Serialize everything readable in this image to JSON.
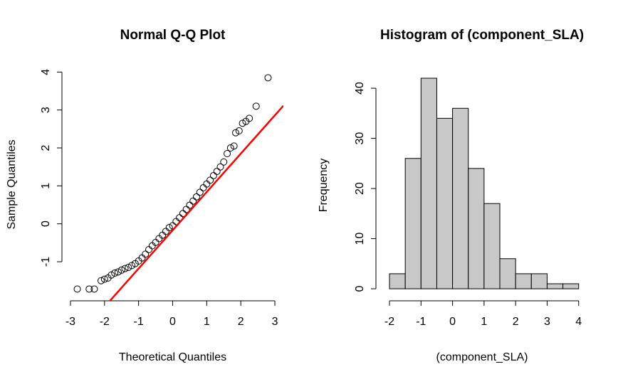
{
  "chart_data": [
    {
      "type": "scatter",
      "title": "Normal Q-Q Plot",
      "x_label": "Theoretical Quantiles",
      "y_label": "Sample Quantiles",
      "x": [
        -2.8,
        -2.45,
        -2.3,
        -2.1,
        -2.0,
        -1.9,
        -1.8,
        -1.7,
        -1.6,
        -1.5,
        -1.4,
        -1.3,
        -1.2,
        -1.1,
        -1.0,
        -0.9,
        -0.8,
        -0.7,
        -0.6,
        -0.5,
        -0.4,
        -0.3,
        -0.2,
        -0.1,
        0,
        0.1,
        0.2,
        0.3,
        0.4,
        0.5,
        0.6,
        0.7,
        0.8,
        0.9,
        1.0,
        1.1,
        1.2,
        1.3,
        1.4,
        1.5,
        1.6,
        1.7,
        1.8,
        1.85,
        1.95,
        2.05,
        2.15,
        2.25,
        2.45,
        2.8
      ],
      "y": [
        -1.72,
        -1.72,
        -1.72,
        -1.5,
        -1.46,
        -1.43,
        -1.35,
        -1.3,
        -1.27,
        -1.22,
        -1.18,
        -1.15,
        -1.1,
        -1.05,
        -0.98,
        -0.9,
        -0.8,
        -0.68,
        -0.58,
        -0.49,
        -0.39,
        -0.3,
        -0.2,
        -0.1,
        -0.05,
        0.06,
        0.16,
        0.27,
        0.38,
        0.49,
        0.6,
        0.71,
        0.83,
        0.95,
        1.05,
        1.15,
        1.27,
        1.38,
        1.5,
        1.63,
        1.85,
        2.0,
        2.05,
        2.4,
        2.45,
        2.65,
        2.7,
        2.78,
        3.1,
        3.85
      ],
      "point_color": "#000000",
      "line": {
        "intercept": -0.17,
        "slope": 1.01,
        "color": "#ff0000"
      },
      "xlim": [
        -3.25,
        3.25
      ],
      "ylim": [
        -2.03,
        4.1
      ],
      "xticks": [
        -3,
        -2,
        -1,
        0,
        1,
        2,
        3
      ],
      "yticks": [
        -1,
        0,
        1,
        2,
        3,
        4
      ]
    },
    {
      "type": "histogram",
      "title": "Histogram of (component_SLA)",
      "x_label": "(component_SLA)",
      "y_label": "Frequency",
      "bins": [
        -2,
        -1.5,
        -1,
        -0.5,
        0,
        0.5,
        1,
        1.5,
        2,
        2.5,
        3,
        3.5,
        4
      ],
      "counts": [
        3,
        26,
        42,
        34,
        36,
        24,
        17,
        6,
        3,
        3,
        1,
        1
      ],
      "color": "#c8c8c8",
      "xlim": [
        -2.43,
        4.3
      ],
      "ylim": [
        -2.4,
        43.7
      ],
      "xticks": [
        -2,
        -1,
        0,
        1,
        2,
        3,
        4
      ],
      "yticks": [
        0,
        10,
        20,
        30,
        40
      ]
    }
  ]
}
